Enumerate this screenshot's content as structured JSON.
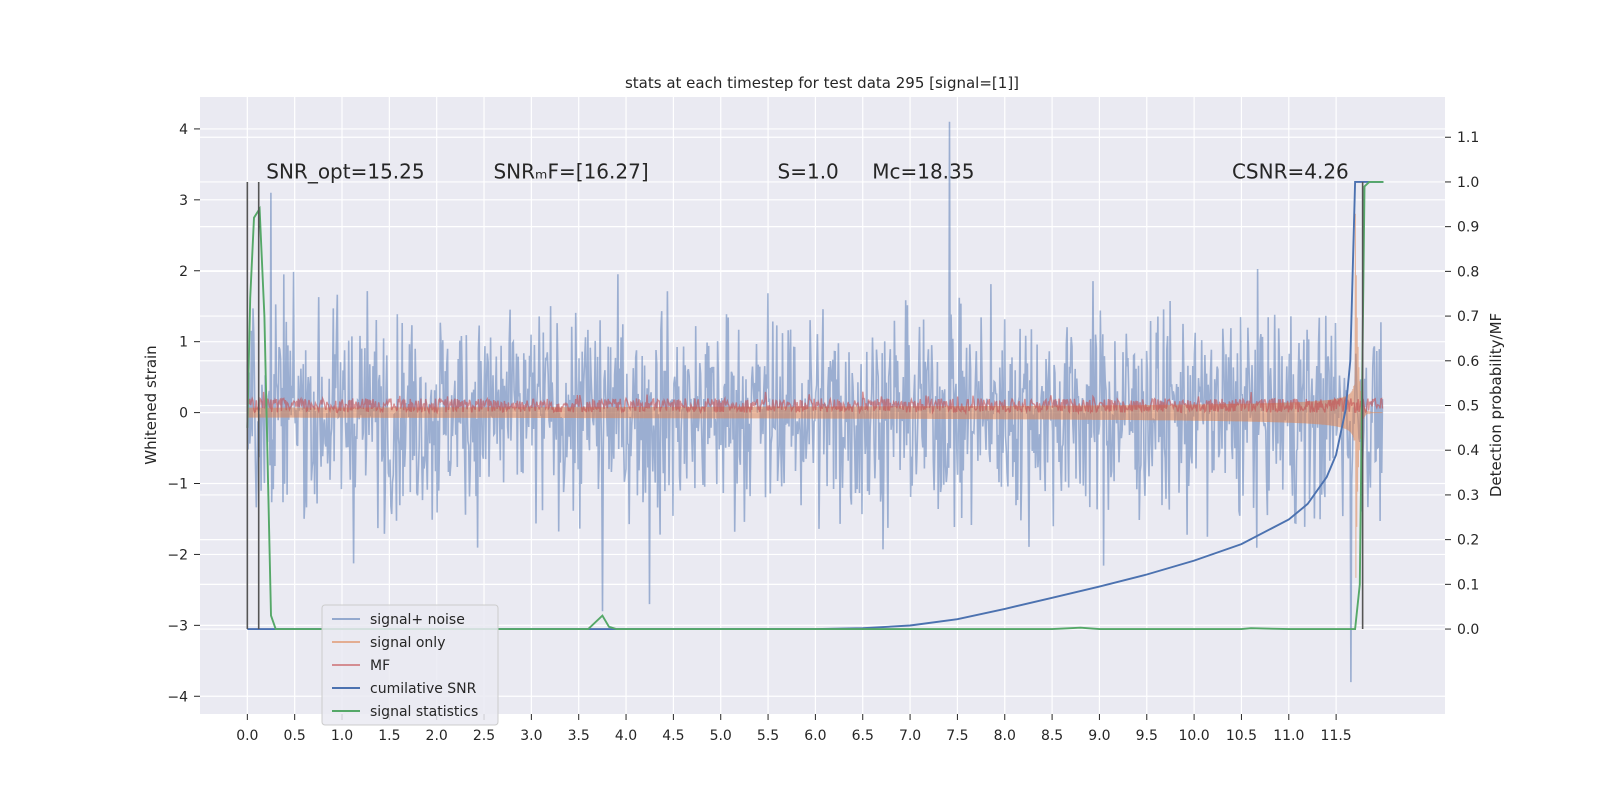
{
  "chart_data": {
    "type": "line",
    "title": "stats at each timestep for test data 295 [signal=[1]]",
    "ylabel_left": "Whitened strain",
    "ylabel_right": "Detection probability/MF",
    "xlim": [
      -0.5,
      12.65
    ],
    "ylim_left": [
      -4.25,
      4.45
    ],
    "ylim_right": [
      -0.19,
      1.19
    ],
    "x_ticks": [
      "0.0",
      "0.5",
      "1.0",
      "1.5",
      "2.0",
      "2.5",
      "3.0",
      "3.5",
      "4.0",
      "4.5",
      "5.0",
      "5.5",
      "6.0",
      "6.5",
      "7.0",
      "7.5",
      "8.0",
      "8.5",
      "9.0",
      "9.5",
      "10.0",
      "10.5",
      "11.0",
      "11.5"
    ],
    "y_ticks_left": [
      4,
      3,
      2,
      1,
      0,
      -1,
      -2,
      -3,
      -4
    ],
    "y_tick_labels_left": [
      "4",
      "3",
      "2",
      "1",
      "0",
      "−1",
      "−2",
      "−3",
      "−4"
    ],
    "y_ticks_right": [
      1.1,
      1.0,
      0.9,
      0.8,
      0.7,
      0.6,
      0.5,
      0.4,
      0.3,
      0.2,
      0.1,
      0.0
    ],
    "y_tick_labels_right": [
      "1.1",
      "1.0",
      "0.9",
      "0.8",
      "0.7",
      "0.6",
      "0.5",
      "0.4",
      "0.3",
      "0.2",
      "0.1",
      "0.0"
    ],
    "grid": true,
    "legend_position": "lower-left",
    "annotations": [
      {
        "id": "snr-opt",
        "text": "SNR_opt=15.25",
        "x": 0.2,
        "y": 3.3
      },
      {
        "id": "snr-mf",
        "text": "SNRₘF=[16.27]",
        "x": 2.6,
        "y": 3.3
      },
      {
        "id": "s",
        "text": "S=1.0",
        "x": 5.6,
        "y": 3.3
      },
      {
        "id": "mc",
        "text": "Mc=18.35",
        "x": 6.6,
        "y": 3.3
      },
      {
        "id": "csnr",
        "text": "CSNR=4.26",
        "x": 10.4,
        "y": 3.3
      }
    ],
    "series": [
      {
        "name": "signal+ noise",
        "color": "#4c72b0",
        "alpha": 0.5,
        "axis": "left",
        "style": "noise",
        "x_range": [
          0.0,
          11.99
        ],
        "std": 0.72,
        "spikes": [
          {
            "x": 0.25,
            "y": 3.1
          },
          {
            "x": 7.42,
            "y": 4.1
          },
          {
            "x": 11.66,
            "y": -3.8
          },
          {
            "x": 3.75,
            "y": -2.8
          },
          {
            "x": 4.25,
            "y": -2.7
          }
        ]
      },
      {
        "name": "signal only",
        "color": "#dd8452",
        "alpha": 0.55,
        "axis": "left",
        "style": "chirp",
        "x_range": [
          0.0,
          11.99
        ],
        "peak_time": 11.7,
        "peak_amplitude": 3.3
      },
      {
        "name": "MF",
        "color": "#c44e52",
        "alpha": 0.6,
        "axis": "left",
        "style": "band",
        "x_range": [
          0.0,
          11.99
        ],
        "values_range": [
          0.0,
          0.2
        ]
      },
      {
        "name": "cumilative SNR",
        "color": "#4c72b0",
        "axis": "right",
        "x": [
          0.0,
          6.0,
          6.5,
          7.0,
          7.5,
          8.0,
          8.5,
          9.0,
          9.5,
          10.0,
          10.5,
          11.0,
          11.2,
          11.4,
          11.5,
          11.6,
          11.65,
          11.7,
          11.75,
          12.0
        ],
        "values": [
          0.0,
          0.0,
          0.002,
          0.008,
          0.022,
          0.045,
          0.07,
          0.095,
          0.122,
          0.153,
          0.19,
          0.245,
          0.28,
          0.34,
          0.39,
          0.49,
          0.6,
          1.0,
          1.0,
          1.0
        ]
      },
      {
        "name": "signal statistics",
        "color": "#55a868",
        "axis": "right",
        "x": [
          0.0,
          0.03,
          0.07,
          0.1,
          0.13,
          0.18,
          0.25,
          0.3,
          0.35,
          3.6,
          3.75,
          3.82,
          3.9,
          8.5,
          8.8,
          9.0,
          10.5,
          10.6,
          11.0,
          11.7,
          11.75,
          11.8,
          11.85,
          11.9,
          12.0
        ],
        "values": [
          0.45,
          0.74,
          0.92,
          0.93,
          0.94,
          0.7,
          0.03,
          0.0,
          0.0,
          0.0,
          0.03,
          0.005,
          0.0,
          0.0,
          0.003,
          0.0,
          0.0,
          0.002,
          0.0,
          0.0,
          0.1,
          0.99,
          1.0,
          1.0,
          1.0
        ]
      },
      {
        "name": "markers",
        "color": "#555555",
        "axis": "right",
        "style": "vlines",
        "x": [
          0.0,
          0.12,
          11.78
        ]
      }
    ],
    "legend_entries": [
      {
        "label": "signal+ noise",
        "color": "#4c72b0",
        "alpha": 0.55
      },
      {
        "label": "signal only",
        "color": "#dd8452",
        "alpha": 0.6
      },
      {
        "label": "MF",
        "color": "#c44e52",
        "alpha": 0.6
      },
      {
        "label": "cumilative SNR",
        "color": "#4c72b0",
        "alpha": 1
      },
      {
        "label": "signal statistics",
        "color": "#55a868",
        "alpha": 1
      }
    ]
  }
}
